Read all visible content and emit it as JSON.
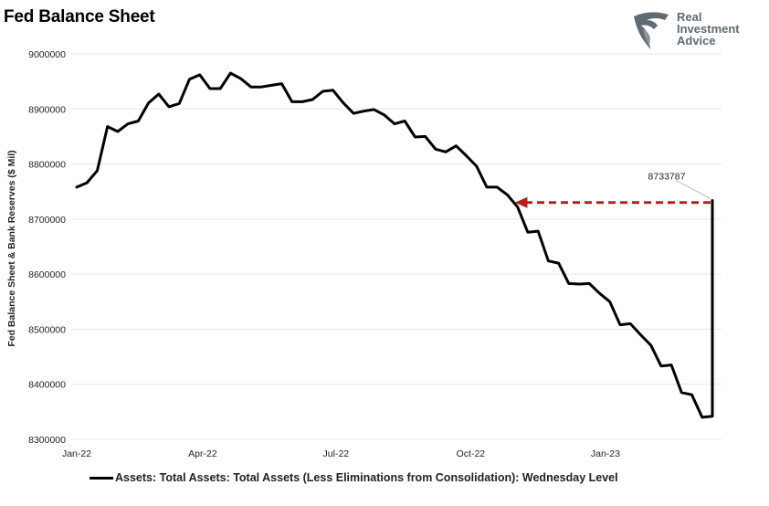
{
  "title": "Fed Balance Sheet",
  "logo": {
    "line1": "Real",
    "line2": "Investment",
    "line3": "Advice",
    "icon": "eagle-icon"
  },
  "colors": {
    "line": "#000000",
    "arrow": "#b22222",
    "grid": "#e6e6e6"
  },
  "chart_data": {
    "type": "line",
    "ylabel": "Fed Balance Sheet & Bank Reserves ($ Mil)",
    "ylim": [
      8300000,
      9000000
    ],
    "yticks": [
      8300000,
      8400000,
      8500000,
      8600000,
      8700000,
      8800000,
      8900000,
      9000000
    ],
    "xlim": [
      "2022-01-05",
      "2023-03-15"
    ],
    "xticks": [
      {
        "date": "2022-01-01",
        "label": "Jan-22"
      },
      {
        "date": "2022-04-01",
        "label": "Apr-22"
      },
      {
        "date": "2022-07-01",
        "label": "Jul-22"
      },
      {
        "date": "2022-10-01",
        "label": "Oct-22"
      },
      {
        "date": "2023-01-01",
        "label": "Jan-23"
      }
    ],
    "grid": true,
    "legend_position": "bottom",
    "series": [
      {
        "name": "Assets: Total Assets: Total Assets (Less Eliminations from Consolidation): Wednesday Level",
        "x": [
          "2022-01-05",
          "2022-01-12",
          "2022-01-19",
          "2022-01-26",
          "2022-02-02",
          "2022-02-09",
          "2022-02-16",
          "2022-02-23",
          "2022-03-02",
          "2022-03-09",
          "2022-03-16",
          "2022-03-23",
          "2022-03-30",
          "2022-04-06",
          "2022-04-13",
          "2022-04-20",
          "2022-04-27",
          "2022-05-04",
          "2022-05-11",
          "2022-05-18",
          "2022-05-25",
          "2022-06-01",
          "2022-06-08",
          "2022-06-15",
          "2022-06-22",
          "2022-06-29",
          "2022-07-06",
          "2022-07-13",
          "2022-07-20",
          "2022-07-27",
          "2022-08-03",
          "2022-08-10",
          "2022-08-17",
          "2022-08-24",
          "2022-08-31",
          "2022-09-07",
          "2022-09-14",
          "2022-09-21",
          "2022-09-28",
          "2022-10-05",
          "2022-10-12",
          "2022-10-19",
          "2022-10-26",
          "2022-11-02",
          "2022-11-09",
          "2022-11-16",
          "2022-11-23",
          "2022-11-30",
          "2022-12-07",
          "2022-12-14",
          "2022-12-21",
          "2022-12-28",
          "2023-01-04",
          "2023-01-11",
          "2023-01-18",
          "2023-01-25",
          "2023-02-01",
          "2023-02-08",
          "2023-02-15",
          "2023-02-22",
          "2023-03-01",
          "2023-03-08",
          "2023-03-15"
        ],
        "y": [
          8758000,
          8766000,
          8788000,
          8868000,
          8859000,
          8873000,
          8878000,
          8911000,
          8927000,
          8904000,
          8910000,
          8954000,
          8962000,
          8937000,
          8937000,
          8965000,
          8955000,
          8940000,
          8940000,
          8943000,
          8946000,
          8913000,
          8913000,
          8917000,
          8932000,
          8934000,
          8911000,
          8892000,
          8896000,
          8899000,
          8889000,
          8873000,
          8878000,
          8849000,
          8850000,
          8827000,
          8822000,
          8833000,
          8815000,
          8796000,
          8758000,
          8758000,
          8744000,
          8722000,
          8676000,
          8678000,
          8624000,
          8620000,
          8583000,
          8582000,
          8583000,
          8565000,
          8550000,
          8508000,
          8510000,
          8490000,
          8471000,
          8433000,
          8435000,
          8385000,
          8381000,
          8340000,
          8342000
        ]
      }
    ],
    "annotations": [
      {
        "type": "label",
        "text": "8733787",
        "x": "2023-03-15",
        "y": 8733787
      },
      {
        "type": "dashed-arrow",
        "from": {
          "x": "2023-03-15",
          "y": 8730000
        },
        "to": {
          "x": "2022-10-26",
          "y": 8730000
        }
      }
    ]
  }
}
